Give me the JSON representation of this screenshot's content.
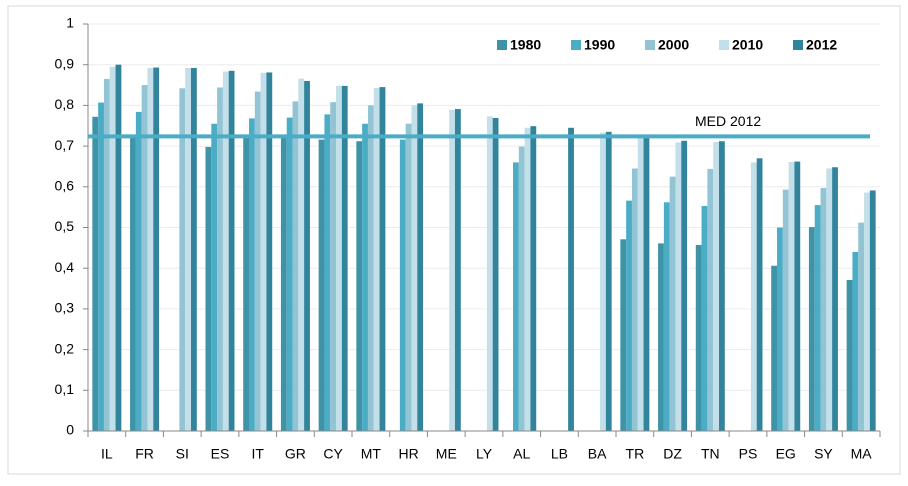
{
  "chart_data": {
    "type": "bar",
    "categories": [
      "IL",
      "FR",
      "SI",
      "ES",
      "IT",
      "GR",
      "CY",
      "MT",
      "HR",
      "ME",
      "LY",
      "AL",
      "LB",
      "BA",
      "TR",
      "DZ",
      "TN",
      "PS",
      "EG",
      "SY",
      "MA"
    ],
    "series": [
      {
        "name": "1980",
        "color": "#3f93a6",
        "values": [
          0.772,
          0.725,
          null,
          0.698,
          0.72,
          0.72,
          0.716,
          0.712,
          null,
          null,
          null,
          null,
          null,
          null,
          0.471,
          0.461,
          0.457,
          null,
          0.406,
          0.501,
          0.371
        ]
      },
      {
        "name": "1990",
        "color": "#4bacc6",
        "values": [
          0.807,
          0.784,
          null,
          0.755,
          0.768,
          0.77,
          0.778,
          0.755,
          0.716,
          null,
          null,
          0.66,
          null,
          null,
          0.566,
          0.562,
          0.553,
          null,
          0.5,
          0.555,
          0.44
        ]
      },
      {
        "name": "2000",
        "color": "#93c4d4",
        "values": [
          0.865,
          0.85,
          0.842,
          0.844,
          0.834,
          0.81,
          0.808,
          0.8,
          0.755,
          null,
          null,
          0.699,
          null,
          null,
          0.645,
          0.625,
          0.644,
          null,
          0.593,
          0.597,
          0.512
        ]
      },
      {
        "name": "2010",
        "color": "#c3dfe9",
        "values": [
          0.895,
          0.892,
          0.892,
          0.883,
          0.88,
          0.866,
          0.848,
          0.843,
          0.8,
          0.789,
          0.773,
          0.745,
          null,
          0.733,
          0.72,
          0.709,
          0.71,
          0.66,
          0.661,
          0.645,
          0.586
        ]
      },
      {
        "name": "2012",
        "color": "#31849b",
        "values": [
          0.9,
          0.893,
          0.892,
          0.885,
          0.881,
          0.86,
          0.848,
          0.845,
          0.805,
          0.791,
          0.769,
          0.749,
          0.745,
          0.735,
          0.722,
          0.713,
          0.712,
          0.67,
          0.662,
          0.648,
          0.591
        ]
      }
    ],
    "reference": {
      "label": "MED 2012",
      "value": 0.724,
      "color": "#4bacc6"
    },
    "ylim": [
      0,
      1
    ],
    "yticks": [
      0,
      {
        "value": 0.1,
        "label": "0,1"
      },
      {
        "value": 0.2,
        "label": "0,2"
      },
      {
        "value": 0.3,
        "label": "0,3"
      },
      {
        "value": 0.4,
        "label": "0,4"
      },
      {
        "value": 0.5,
        "label": "0,5"
      },
      {
        "value": 0.6,
        "label": "0,6"
      },
      {
        "value": 0.7,
        "label": "0,7"
      },
      {
        "value": 0.8,
        "label": "0,8"
      },
      {
        "value": 0.9,
        "label": "0,9"
      },
      1
    ],
    "grid": true,
    "legend": "top-right"
  }
}
